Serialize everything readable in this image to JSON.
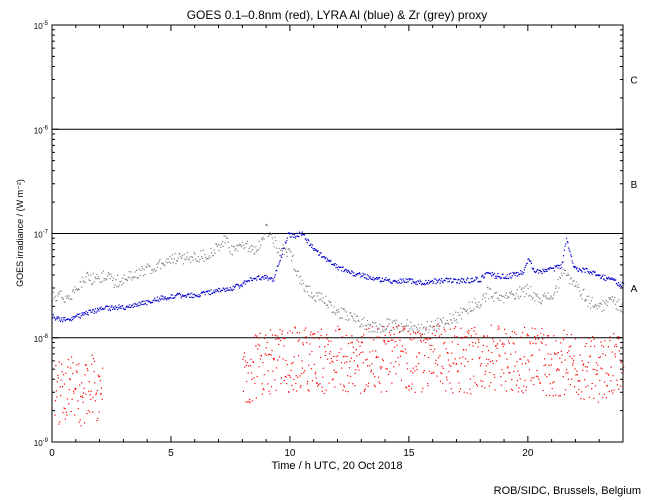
{
  "chart_data": {
    "type": "scatter",
    "title": "GOES 0.1–0.8nm (red), LYRA Al (blue) & Zr (grey) proxy",
    "xlabel": "Time / h UTC, 20 Oct 2018",
    "ylabel": "GOES irradiance / (W m⁻²)",
    "credit": "ROB/SIDC, Brussels, Belgium",
    "xlim": [
      0,
      24
    ],
    "ylim": [
      1e-09,
      1e-05
    ],
    "yscale": "log",
    "x_ticks": [
      {
        "value": 0,
        "label": "0"
      },
      {
        "value": 5,
        "label": "5"
      },
      {
        "value": 10,
        "label": "10"
      },
      {
        "value": 15,
        "label": "15"
      },
      {
        "value": 20,
        "label": "20"
      }
    ],
    "y_ticks": [
      {
        "value": 1e-09,
        "base": "10",
        "exp": "-9"
      },
      {
        "value": 1e-08,
        "base": "10",
        "exp": "-8"
      },
      {
        "value": 1e-07,
        "base": "10",
        "exp": "-7"
      },
      {
        "value": 1e-06,
        "base": "10",
        "exp": "-6"
      },
      {
        "value": 1e-05,
        "base": "10",
        "exp": "-5"
      }
    ],
    "flare_classes": [
      {
        "label": "A",
        "level": 3e-08
      },
      {
        "label": "B",
        "level": 3e-07
      },
      {
        "label": "C",
        "level": 3e-06
      }
    ],
    "threshold_lines": [
      1e-08,
      1e-07,
      1e-06
    ],
    "grid": false,
    "colors": {
      "goes": "#ff0000",
      "lyra_al": "#0000cc",
      "lyra_zr": "#808080",
      "lines": "#000000"
    },
    "series": [
      {
        "color_key": "lyra_al",
        "x": [
          0.0,
          0.5,
          1.0,
          1.5,
          2.0,
          2.5,
          3.0,
          3.5,
          4.0,
          4.5,
          5.0,
          5.5,
          6.0,
          6.5,
          7.0,
          7.5,
          8.0,
          8.5,
          9.0,
          9.3,
          9.6,
          9.9,
          10.2,
          10.5,
          10.8,
          11.2,
          11.6,
          12.0,
          12.5,
          13.0,
          13.5,
          14.0,
          14.5,
          15.0,
          15.5,
          16.0,
          16.5,
          17.0,
          17.5,
          18.0,
          18.3,
          18.5,
          19.0,
          19.5,
          19.8,
          20.0,
          20.2,
          20.5,
          21.0,
          21.4,
          21.6,
          21.9,
          22.5,
          23.0,
          23.5,
          24.0
        ],
        "y": [
          1.6e-08,
          1.5e-08,
          1.6e-08,
          1.75e-08,
          1.9e-08,
          1.95e-08,
          2e-08,
          2.1e-08,
          2.2e-08,
          2.4e-08,
          2.5e-08,
          2.6e-08,
          2.6e-08,
          2.7e-08,
          2.9e-08,
          3e-08,
          3.3e-08,
          3.8e-08,
          3.8e-08,
          3.6e-08,
          6e-08,
          9.8e-08,
          9.6e-08,
          1.03e-07,
          8e-08,
          6.5e-08,
          5.5e-08,
          4.8e-08,
          4.3e-08,
          4e-08,
          3.8e-08,
          3.6e-08,
          3.5e-08,
          3.55e-08,
          3.4e-08,
          3.5e-08,
          3.6e-08,
          3.5e-08,
          3.6e-08,
          3.7e-08,
          4.5e-08,
          4e-08,
          3.9e-08,
          4.1e-08,
          4.3e-08,
          6e-08,
          4.5e-08,
          4.3e-08,
          4.6e-08,
          4.9e-08,
          9e-08,
          4.8e-08,
          4.4e-08,
          4e-08,
          3.6e-08,
          3.2e-08
        ]
      },
      {
        "color_key": "lyra_zr",
        "x": [
          0.0,
          0.3,
          0.6,
          1.0,
          1.4,
          1.8,
          2.2,
          2.6,
          3.0,
          3.5,
          4.0,
          4.5,
          5.0,
          5.5,
          6.0,
          6.5,
          7.0,
          7.3,
          7.6,
          8.0,
          8.3,
          8.7,
          9.0,
          9.5,
          10.0,
          10.5,
          11.0,
          11.5,
          12.0,
          12.5,
          13.0,
          13.5,
          14.0,
          14.5,
          15.0,
          15.5,
          16.0,
          16.5,
          17.0,
          17.5,
          18.0,
          18.3,
          18.6,
          19.0,
          19.5,
          20.0,
          20.5,
          21.0,
          21.5,
          22.0,
          22.5,
          23.0,
          23.5,
          24.0
        ],
        "y": [
          2.4e-08,
          2.7e-08,
          2.3e-08,
          3.2e-08,
          3.8e-08,
          3.6e-08,
          3.9e-08,
          3.5e-08,
          3.6e-08,
          4.2e-08,
          4.6e-08,
          5.3e-08,
          5.6e-08,
          5.9e-08,
          6.1e-08,
          6.3e-08,
          7.5e-08,
          8.8e-08,
          6.6e-08,
          8.3e-08,
          7e-08,
          7.8e-08,
          1.15e-07,
          7.1e-08,
          6.5e-08,
          3.3e-08,
          2.6e-08,
          2.2e-08,
          1.8e-08,
          1.6e-08,
          1.45e-08,
          1.25e-08,
          1.35e-08,
          1.3e-08,
          1.35e-08,
          1.2e-08,
          1.35e-08,
          1.45e-08,
          1.6e-08,
          2e-08,
          2.2e-08,
          2.8e-08,
          2.4e-08,
          2.4e-08,
          2.7e-08,
          2.9e-08,
          2.4e-08,
          2.5e-08,
          4.2e-08,
          3.3e-08,
          2.3e-08,
          2e-08,
          2.3e-08,
          2e-08
        ]
      },
      {
        "color_key": "goes",
        "segments": [
          {
            "x": [
              0.1,
              0.4,
              0.7,
              1.0,
              1.3,
              1.6,
              1.9,
              2.1
            ],
            "y": [
              3.2e-09,
              2.8e-09,
              4e-09,
              3e-09,
              2.6e-09,
              3.4e-09,
              3e-09,
              3.5e-09
            ]
          },
          {
            "x": [
              8.0,
              8.5,
              9.0,
              9.5,
              10.0,
              10.5,
              11.0,
              11.5,
              12.0,
              12.5,
              13.0,
              13.5,
              14.0,
              14.5,
              15.0,
              15.5,
              16.0,
              16.5,
              17.0,
              17.5,
              18.0,
              18.5,
              19.0,
              19.5,
              20.0,
              20.5,
              21.0,
              21.5,
              22.0,
              22.5,
              23.0,
              23.5,
              24.0
            ],
            "y": [
              3.6e-09,
              5.5e-09,
              6.2e-09,
              5.9e-09,
              6e-09,
              6.4e-09,
              5.8e-09,
              6e-09,
              6.3e-09,
              5.8e-09,
              6.1e-09,
              6.5e-09,
              6.2e-09,
              6.6e-09,
              6.3e-09,
              6e-09,
              6.8e-09,
              6.4e-09,
              6.2e-09,
              6e-09,
              6.3e-09,
              6.5e-09,
              6.1e-09,
              5.8e-09,
              6.4e-09,
              6e-09,
              5.7e-09,
              5.9e-09,
              5.4e-09,
              5.2e-09,
              5e-09,
              5.3e-09,
              5.6e-09
            ]
          }
        ]
      }
    ]
  }
}
